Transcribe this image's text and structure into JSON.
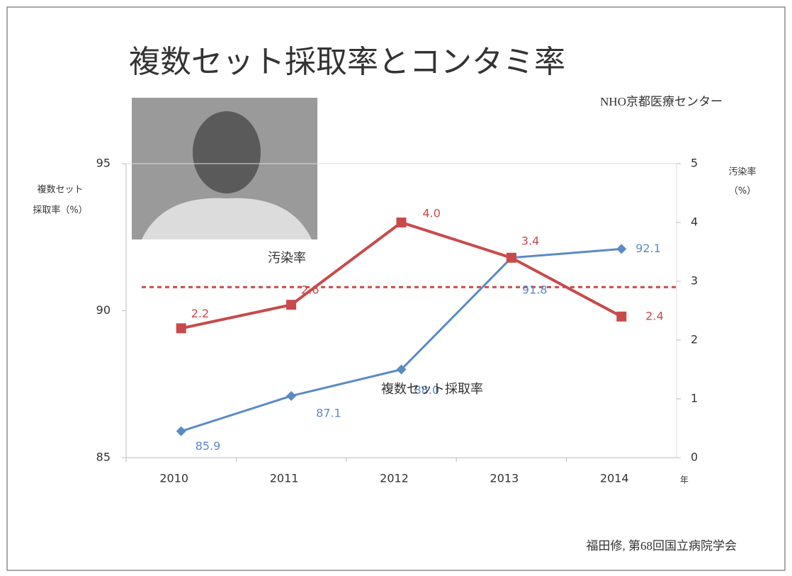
{
  "chart_data": {
    "type": "line",
    "title": "複数セット採取率とコンタミ率",
    "subtitle": "NHO京都医療センター",
    "source": "福田修, 第68回国立病院学会",
    "x_label": "年",
    "y_label": [
      "複数セット",
      "採取率（%）"
    ],
    "y2_label": [
      "汚染率",
      "（%）"
    ],
    "categories": [
      "2010",
      "2011",
      "2012",
      "2013",
      "2014"
    ],
    "series": [
      {
        "name": "複数セット採取率",
        "color": "#5b8ac6",
        "values": [
          85.9,
          87.1,
          88.0,
          91.8,
          92.1
        ],
        "value_labels": [
          "85.9",
          "87.1",
          "88.0",
          "91.8",
          "92.1"
        ],
        "marker": "diamond"
      },
      {
        "name": "汚染率",
        "color": "#c94a4a",
        "values": [
          2.2,
          2.6,
          4.0,
          3.4,
          2.4
        ],
        "value_labels": [
          "2.2",
          "2.6",
          "4.0",
          "3.4",
          "2.4"
        ],
        "axis": "y2",
        "marker": "square"
      }
    ],
    "reference_line": {
      "value": 2.9,
      "axis": "y2",
      "color": "#c94a4a"
    },
    "ylim": [
      85,
      95
    ],
    "yticks": [
      85,
      90,
      95
    ],
    "y2lim": [
      0,
      5
    ],
    "y2ticks": [
      0,
      1,
      2,
      3,
      4,
      5
    ],
    "grid": false
  }
}
